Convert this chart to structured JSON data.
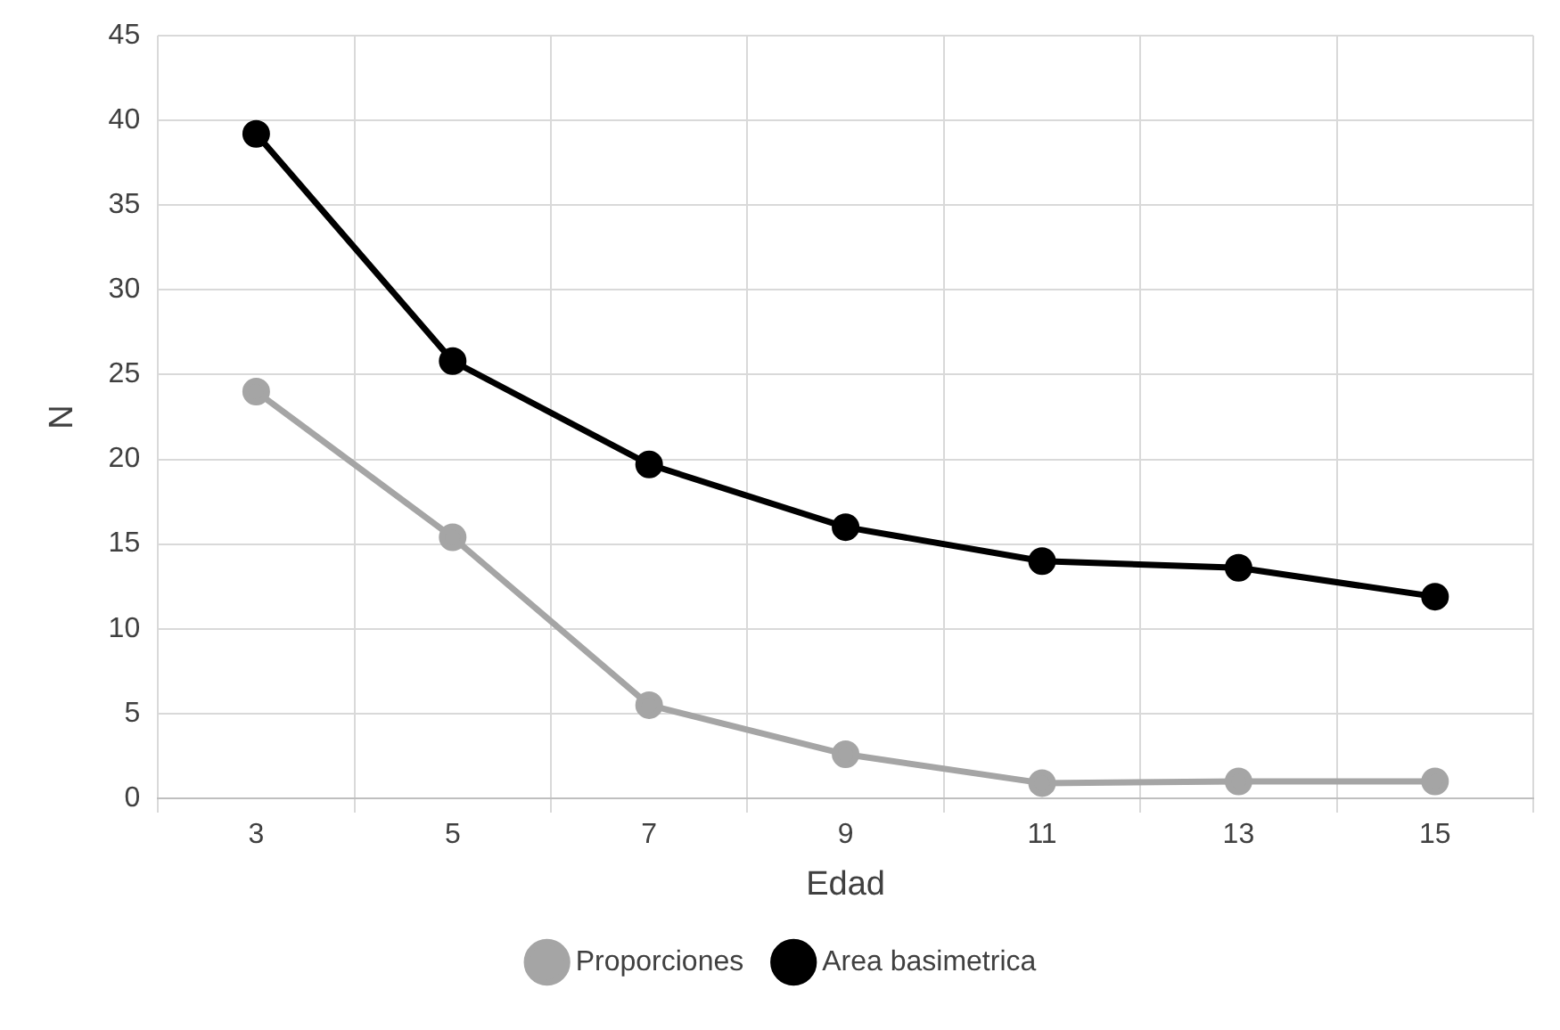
{
  "chart_data": {
    "type": "line",
    "xlabel": "Edad",
    "ylabel": "N",
    "categories": [
      "3",
      "5",
      "7",
      "9",
      "11",
      "13",
      "15"
    ],
    "series": [
      {
        "name": "Proporciones",
        "color": "#a5a5a5",
        "values": [
          24.0,
          15.4,
          5.5,
          2.6,
          0.9,
          1.0,
          1.0
        ]
      },
      {
        "name": "Area basimetrica",
        "color": "#000000",
        "values": [
          39.2,
          25.8,
          19.7,
          16.0,
          14.0,
          13.6,
          11.9
        ]
      }
    ],
    "ylim": [
      0,
      45
    ],
    "yticks": [
      0,
      5,
      10,
      15,
      20,
      25,
      30,
      35,
      40,
      45
    ],
    "grid": true,
    "legend": "bottom",
    "marker": "circle",
    "line_style": "solid"
  }
}
